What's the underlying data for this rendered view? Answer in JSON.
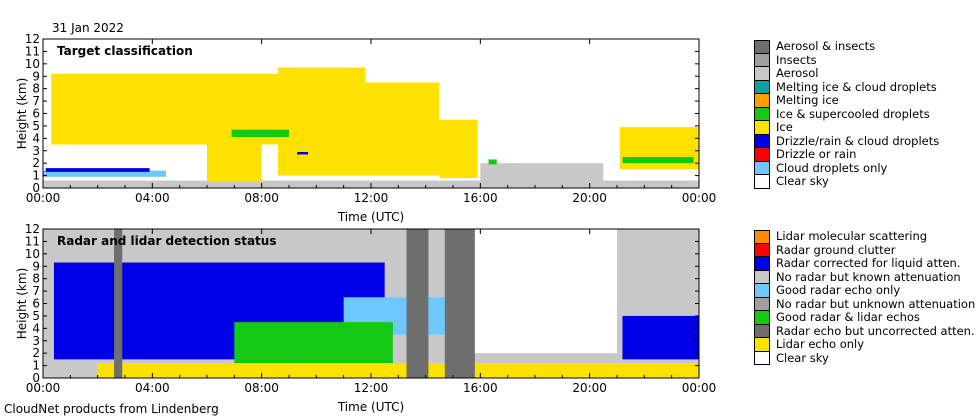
{
  "date": "31 Jan 2022",
  "footer": "CloudNet products from Lindenberg",
  "chart_data": [
    {
      "type": "heatmap",
      "title": "Target classification",
      "xlabel": "Time (UTC)",
      "ylabel": "Height (km)",
      "xlim": [
        0,
        24
      ],
      "ylim": [
        0,
        12
      ],
      "xticks": [
        "00:00",
        "04:00",
        "08:00",
        "12:00",
        "16:00",
        "20:00",
        "00:00"
      ],
      "yticks": [
        0,
        1,
        2,
        3,
        4,
        5,
        6,
        7,
        8,
        9,
        10,
        11,
        12
      ],
      "legend_position": "right",
      "legend": [
        {
          "label": "Aerosol & insects",
          "color": "#6e6e6e"
        },
        {
          "label": "Insects",
          "color": "#a0a0a0"
        },
        {
          "label": "Aerosol",
          "color": "#c8c8c8"
        },
        {
          "label": "Melting ice & cloud droplets",
          "color": "#0fa0a0"
        },
        {
          "label": "Melting ice",
          "color": "#ffa000"
        },
        {
          "label": "Ice & supercooled droplets",
          "color": "#14c814"
        },
        {
          "label": "Ice",
          "color": "#ffe100"
        },
        {
          "label": "Drizzle/rain & cloud droplets",
          "color": "#0000e6"
        },
        {
          "label": "Drizzle or rain",
          "color": "#ff0000"
        },
        {
          "label": "Cloud droplets only",
          "color": "#6ec8ff"
        },
        {
          "label": "Clear sky",
          "color": "#ffffff"
        }
      ],
      "regions": [
        {
          "class": "Aerosol",
          "t0": 0.0,
          "t1": 24.0,
          "h0": 0.0,
          "h1": 0.6
        },
        {
          "class": "Ice",
          "t0": 0.3,
          "t1": 8.6,
          "h0": 3.5,
          "h1": 9.2
        },
        {
          "class": "Ice",
          "t0": 8.6,
          "t1": 11.8,
          "h0": 1.0,
          "h1": 9.7
        },
        {
          "class": "Ice",
          "t0": 11.8,
          "t1": 14.5,
          "h0": 1.0,
          "h1": 8.5
        },
        {
          "class": "Ice",
          "t0": 14.5,
          "t1": 15.9,
          "h0": 0.8,
          "h1": 5.5
        },
        {
          "class": "Ice",
          "t0": 6.0,
          "t1": 8.0,
          "h0": 0.5,
          "h1": 4.5
        },
        {
          "class": "Ice",
          "t0": 21.1,
          "t1": 24.0,
          "h0": 1.5,
          "h1": 4.9
        },
        {
          "class": "Aerosol",
          "t0": 16.0,
          "t1": 20.5,
          "h0": 0.3,
          "h1": 2.0
        },
        {
          "class": "Cloud droplets only",
          "t0": 0.0,
          "t1": 4.5,
          "h0": 0.9,
          "h1": 1.4
        },
        {
          "class": "Drizzle/rain & cloud droplets",
          "t0": 0.1,
          "t1": 3.9,
          "h0": 1.3,
          "h1": 1.6
        },
        {
          "class": "Ice & supercooled droplets",
          "t0": 6.9,
          "t1": 9.0,
          "h0": 4.1,
          "h1": 4.7
        },
        {
          "class": "Ice & supercooled droplets",
          "t0": 16.3,
          "t1": 16.6,
          "h0": 1.9,
          "h1": 2.3
        },
        {
          "class": "Ice & supercooled droplets",
          "t0": 21.2,
          "t1": 23.8,
          "h0": 2.0,
          "h1": 2.5
        },
        {
          "class": "Drizzle/rain & cloud droplets",
          "t0": 9.3,
          "t1": 9.7,
          "h0": 2.7,
          "h1": 2.9
        }
      ]
    },
    {
      "type": "heatmap",
      "title": "Radar and lidar detection status",
      "xlabel": "Time (UTC)",
      "ylabel": "Height (km)",
      "xlim": [
        0,
        24
      ],
      "ylim": [
        0,
        12
      ],
      "xticks": [
        "00:00",
        "04:00",
        "08:00",
        "12:00",
        "16:00",
        "20:00",
        "00:00"
      ],
      "yticks": [
        0,
        1,
        2,
        3,
        4,
        5,
        6,
        7,
        8,
        9,
        10,
        11,
        12
      ],
      "legend_position": "right",
      "legend": [
        {
          "label": "Lidar molecular scattering",
          "color": "#ff8c00"
        },
        {
          "label": "Radar ground clutter",
          "color": "#ff0000"
        },
        {
          "label": "Radar corrected for liquid atten.",
          "color": "#0000e6"
        },
        {
          "label": "No radar but known attenuation",
          "color": "#c8c8c8"
        },
        {
          "label": "Good radar echo only",
          "color": "#6ec8ff"
        },
        {
          "label": "No radar but unknown attenuation",
          "color": "#a0a0a0"
        },
        {
          "label": "Good radar & lidar echos",
          "color": "#14c814"
        },
        {
          "label": "Radar echo but uncorrected atten.",
          "color": "#6e6e6e"
        },
        {
          "label": "Lidar echo only",
          "color": "#ffe100"
        },
        {
          "label": "Clear sky",
          "color": "#ffffff"
        }
      ],
      "regions": [
        {
          "class": "No radar but known attenuation",
          "t0": 0.0,
          "t1": 24.0,
          "h0": 0.0,
          "h1": 12.0
        },
        {
          "class": "Radar corrected for liquid atten.",
          "t0": 0.4,
          "t1": 12.5,
          "h0": 1.5,
          "h1": 9.3
        },
        {
          "class": "Good radar echo only",
          "t0": 11.0,
          "t1": 15.8,
          "h0": 3.5,
          "h1": 6.5
        },
        {
          "class": "Good radar & lidar echos",
          "t0": 7.0,
          "t1": 12.8,
          "h0": 1.0,
          "h1": 4.5
        },
        {
          "class": "Lidar echo only",
          "t0": 2.0,
          "t1": 24.0,
          "h0": 0.0,
          "h1": 1.2
        },
        {
          "class": "Clear sky",
          "t0": 15.5,
          "t1": 21.0,
          "h0": 2.0,
          "h1": 12.0
        },
        {
          "class": "Radar corrected for liquid atten.",
          "t0": 21.2,
          "t1": 24.0,
          "h0": 1.5,
          "h1": 5.0
        },
        {
          "class": "Radar echo but uncorrected atten.",
          "t0": 2.6,
          "t1": 2.9,
          "h0": 0.0,
          "h1": 12.0
        },
        {
          "class": "Radar echo but uncorrected atten.",
          "t0": 13.3,
          "t1": 14.1,
          "h0": 0.0,
          "h1": 12.0
        },
        {
          "class": "Radar echo but uncorrected atten.",
          "t0": 14.7,
          "t1": 15.8,
          "h0": 0.0,
          "h1": 12.0
        }
      ]
    }
  ]
}
